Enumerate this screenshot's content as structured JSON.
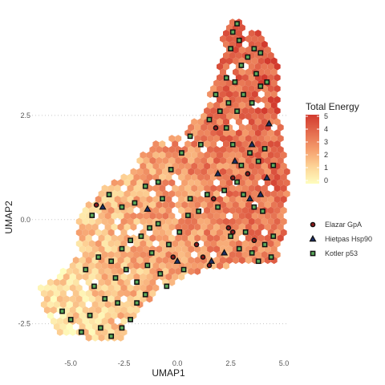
{
  "chart_data": {
    "type": "scatter",
    "title": "",
    "xlabel": "UMAP1",
    "ylabel": "UMAP2",
    "xlim": [
      -7.0,
      5.6
    ],
    "ylim": [
      -3.2,
      5.0
    ],
    "x_ticks": [
      {
        "value": -5.0,
        "label": "-5.0"
      },
      {
        "value": -2.5,
        "label": "-2.5"
      },
      {
        "value": 0.0,
        "label": "0.0"
      },
      {
        "value": 2.5,
        "label": "2.5"
      },
      {
        "value": 5.0,
        "label": "5.0"
      }
    ],
    "y_ticks": [
      {
        "value": -2.5,
        "label": "-2.5"
      },
      {
        "value": 0.0,
        "label": "0.0"
      },
      {
        "value": 2.5,
        "label": "2.5"
      }
    ],
    "grid": "dotted horizontal lines",
    "hexbin": {
      "fill_label": "Total Energy",
      "range": [
        0,
        5
      ],
      "colorbar_ticks": [
        "5",
        "4",
        "3",
        "2",
        "1",
        "0"
      ],
      "colors": [
        "#fefdbe",
        "#fdd396",
        "#f59d6c",
        "#e46b4d",
        "#d23a2e"
      ]
    },
    "series": [
      {
        "name": "Elazar GpA",
        "marker": "circle",
        "fill": "#8b1a1a",
        "points": [
          [
            -3.8,
            0.35
          ],
          [
            -0.2,
            -0.9
          ],
          [
            0.9,
            -0.6
          ],
          [
            1.2,
            -0.9
          ],
          [
            1.5,
            -1.1
          ],
          [
            2.4,
            -0.2
          ],
          [
            2.6,
            -0.3
          ],
          [
            3.6,
            -0.5
          ],
          [
            3.3,
            1.1
          ],
          [
            2.6,
            1.0
          ],
          [
            1.7,
            0.5
          ],
          [
            1.8,
            2.2
          ]
        ]
      },
      {
        "name": "Hietpas Hsp90",
        "marker": "triangle",
        "fill": "#1c2f66",
        "points": [
          [
            -3.5,
            0.3
          ],
          [
            -1.4,
            0.25
          ],
          [
            0.0,
            -1.0
          ],
          [
            2.2,
            -0.8
          ],
          [
            1.6,
            -1.0
          ],
          [
            3.4,
            0.5
          ],
          [
            3.9,
            0.6
          ],
          [
            4.2,
            1.0
          ],
          [
            4.3,
            2.3
          ],
          [
            2.7,
            1.4
          ],
          [
            1.9,
            1.1
          ],
          [
            3.5,
            1.8
          ]
        ]
      },
      {
        "name": "Kotler p53",
        "marker": "square",
        "fill": "#5aa95a",
        "points": [
          [
            -5.4,
            -2.2
          ],
          [
            -5.0,
            -2.4
          ],
          [
            -4.5,
            -2.7
          ],
          [
            -4.1,
            -2.3
          ],
          [
            -3.6,
            -2.6
          ],
          [
            -3.1,
            -2.8
          ],
          [
            -2.6,
            -2.6
          ],
          [
            -2.2,
            -2.4
          ],
          [
            -1.9,
            -2.0
          ],
          [
            -1.5,
            -1.8
          ],
          [
            -2.8,
            -2.0
          ],
          [
            -3.4,
            -1.9
          ],
          [
            -3.9,
            -1.6
          ],
          [
            -4.3,
            -1.2
          ],
          [
            -3.7,
            -0.9
          ],
          [
            -3.1,
            -1.0
          ],
          [
            -2.6,
            -0.7
          ],
          [
            -2.2,
            -0.5
          ],
          [
            -1.7,
            -0.4
          ],
          [
            -1.3,
            -0.2
          ],
          [
            -0.9,
            -0.1
          ],
          [
            -2.9,
            -1.4
          ],
          [
            -2.4,
            -1.2
          ],
          [
            -1.9,
            -1.5
          ],
          [
            -1.4,
            -1.1
          ],
          [
            -0.8,
            -1.3
          ],
          [
            -0.4,
            -0.6
          ],
          [
            0.1,
            -0.3
          ],
          [
            0.5,
            0.1
          ],
          [
            -4.0,
            0.1
          ],
          [
            -3.2,
            0.6
          ],
          [
            -2.6,
            0.3
          ],
          [
            -2.0,
            0.4
          ],
          [
            -1.5,
            0.8
          ],
          [
            -0.9,
            0.9
          ],
          [
            -0.3,
            1.2
          ],
          [
            0.2,
            1.6
          ],
          [
            0.6,
            0.5
          ],
          [
            1.0,
            0.2
          ],
          [
            1.4,
            0.6
          ],
          [
            1.9,
            0.3
          ],
          [
            2.2,
            0.7
          ],
          [
            2.5,
            -0.4
          ],
          [
            2.9,
            -0.7
          ],
          [
            3.2,
            -0.3
          ],
          [
            3.5,
            -0.8
          ],
          [
            3.8,
            -1.0
          ],
          [
            4.1,
            -0.6
          ],
          [
            4.5,
            -0.4
          ],
          [
            4.4,
            -0.9
          ],
          [
            4.0,
            0.2
          ],
          [
            3.6,
            0.3
          ],
          [
            3.1,
            0.6
          ],
          [
            2.8,
            0.9
          ],
          [
            3.0,
            1.3
          ],
          [
            3.4,
            1.6
          ],
          [
            3.8,
            1.4
          ],
          [
            4.1,
            1.7
          ],
          [
            4.5,
            1.3
          ],
          [
            2.6,
            1.8
          ],
          [
            2.3,
            2.2
          ],
          [
            2.0,
            2.6
          ],
          [
            2.4,
            2.8
          ],
          [
            2.8,
            2.6
          ],
          [
            3.1,
            3.0
          ],
          [
            3.5,
            2.8
          ],
          [
            3.9,
            3.2
          ],
          [
            4.2,
            3.3
          ],
          [
            2.3,
            3.4
          ],
          [
            2.7,
            3.3
          ],
          [
            3.0,
            3.7
          ],
          [
            3.3,
            3.9
          ],
          [
            3.7,
            3.5
          ],
          [
            2.5,
            4.1
          ],
          [
            2.9,
            4.3
          ],
          [
            3.6,
            4.1
          ],
          [
            3.9,
            4.0
          ],
          [
            2.6,
            4.5
          ],
          [
            2.8,
            4.7
          ],
          [
            1.8,
            3.0
          ],
          [
            1.5,
            2.4
          ],
          [
            1.1,
            1.8
          ],
          [
            0.6,
            2.0
          ],
          [
            -0.7,
            0.5
          ],
          [
            -1.2,
            -0.8
          ],
          [
            -0.5,
            -1.6
          ],
          [
            0.3,
            -1.2
          ]
        ]
      }
    ]
  }
}
